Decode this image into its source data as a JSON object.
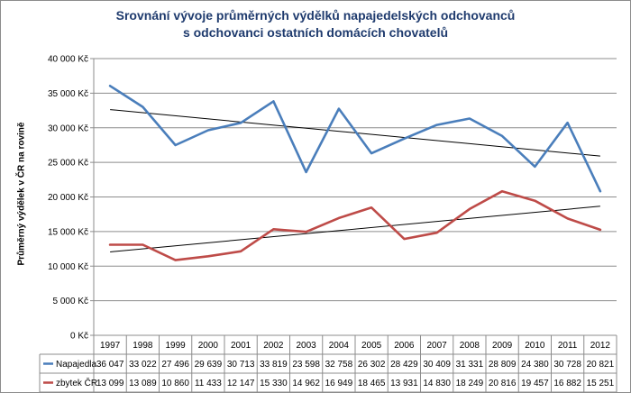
{
  "chart_data": {
    "type": "line",
    "title_lines": [
      "Srovnání vývoje průměrných výdělků napajedelských odchovanců",
      "s odchovanci ostatních domácích chovatelů"
    ],
    "ylabel": "Průměrný výdělek v ČR na rovině",
    "xlabel": "",
    "ylim": [
      0,
      40000
    ],
    "y_ticks": [
      "0 Kč",
      "5 000 Kč",
      "10 000 Kč",
      "15 000 Kč",
      "20 000 Kč",
      "25 000 Kč",
      "30 000 Kč",
      "35 000 Kč",
      "40 000 Kč"
    ],
    "grid": true,
    "categories": [
      "1997",
      "1998",
      "1999",
      "2000",
      "2001",
      "2002",
      "2003",
      "2004",
      "2005",
      "2006",
      "2007",
      "2008",
      "2009",
      "2010",
      "2011",
      "2012"
    ],
    "series": [
      {
        "name": "Napajedla",
        "color": "#4a7ebb",
        "values": [
          36047,
          33022,
          27496,
          29639,
          30713,
          33819,
          23598,
          32758,
          26302,
          28429,
          30409,
          31331,
          28809,
          24380,
          30728,
          20821
        ],
        "labels": [
          "36 047",
          "33 022",
          "27 496",
          "29 639",
          "30 713",
          "33 819",
          "23 598",
          "32 758",
          "26 302",
          "28 429",
          "30 409",
          "31 331",
          "28 809",
          "24 380",
          "30 728",
          "20 821"
        ]
      },
      {
        "name": "zbytek ČR",
        "color": "#be4b48",
        "values": [
          13099,
          13089,
          10860,
          11433,
          12147,
          15330,
          14962,
          16949,
          18465,
          13931,
          14830,
          18249,
          20816,
          19457,
          16882,
          15251
        ],
        "labels": [
          "13 099",
          "13 089",
          "10 860",
          "11 433",
          "12 147",
          "15 330",
          "14 962",
          "16 949",
          "18 465",
          "13 931",
          "14 830",
          "18 249",
          "20 816",
          "19 457",
          "16 882",
          "15 251"
        ]
      }
    ],
    "trendlines": true,
    "data_table": true
  }
}
